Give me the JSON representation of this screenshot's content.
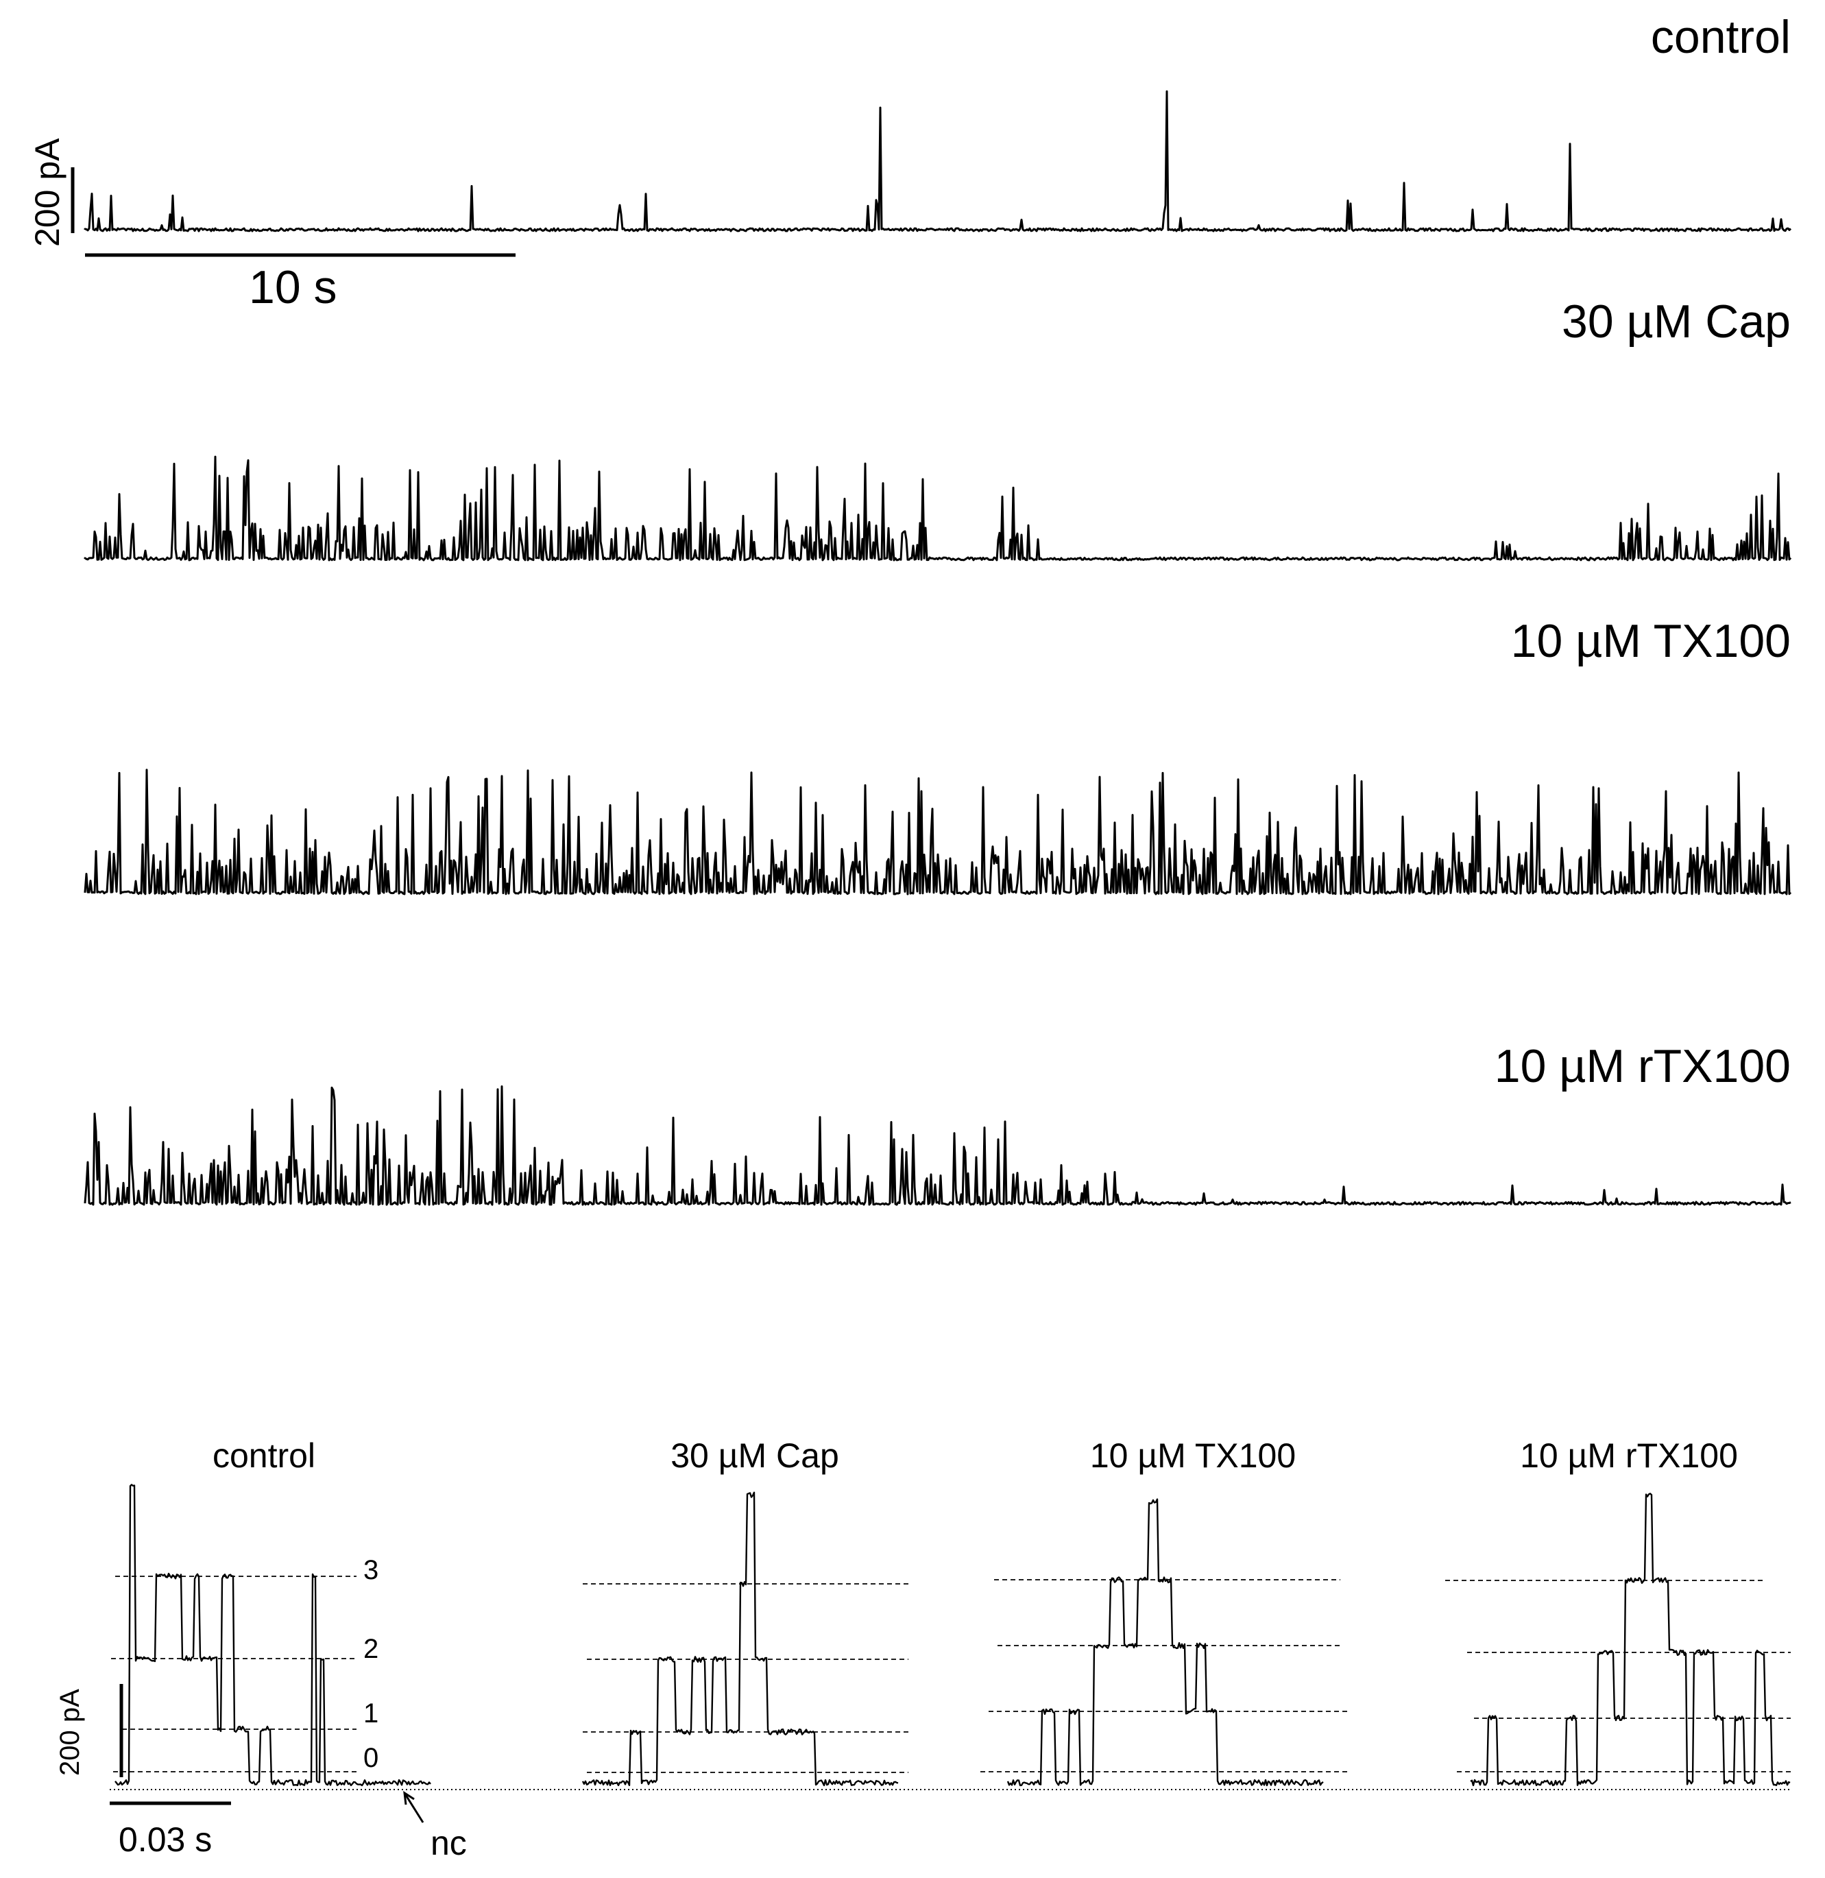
{
  "long_traces": [
    {
      "label": "control"
    },
    {
      "label": "30 µM Cap"
    },
    {
      "label": "10 µM TX100"
    },
    {
      "label": "10 µM rTX100"
    }
  ],
  "long_scale": {
    "current_label": "200 pA",
    "time_label": "10 s"
  },
  "short_traces": [
    {
      "label": "control"
    },
    {
      "label": "30 µM Cap"
    },
    {
      "label": "10 µM TX100"
    },
    {
      "label": "10 µM rTX100"
    }
  ],
  "level_labels": [
    "3",
    "2",
    "1",
    "0"
  ],
  "short_scale": {
    "current_label": "200 pA",
    "time_label": "0.03 s"
  },
  "nc_label": "nc"
}
